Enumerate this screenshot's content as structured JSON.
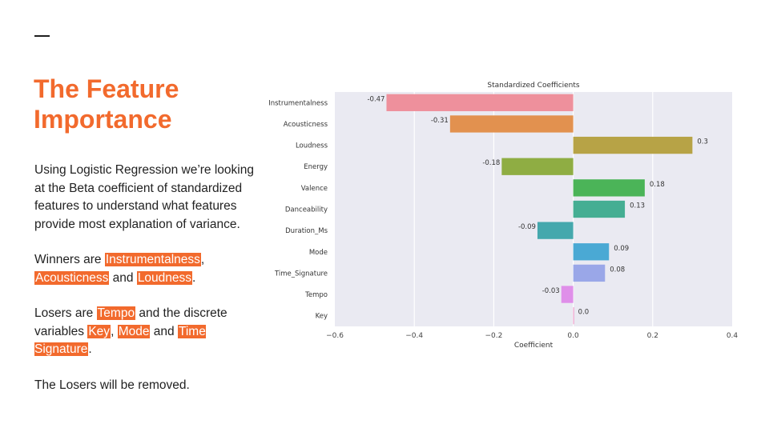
{
  "slide": {
    "title": "The Feature Importance",
    "intro": "Using Logistic Regression we’re looking at the Beta coefficient of standardized features to understand what features provide most explanation of variance.",
    "winners_prefix": "Winners are ",
    "winners": [
      "Instrumentalness",
      "Acousticness",
      "Loudness"
    ],
    "winners_sep_1": ", ",
    "winners_sep_2": " and ",
    "winners_suffix": ".",
    "losers_prefix": "Losers are ",
    "losers_tempo": "Tempo",
    "losers_mid": " and the discrete variables ",
    "losers_key": "Key",
    "losers_sep_1": ", ",
    "losers_mode": "Mode",
    "losers_sep_2": " and ",
    "losers_time": "Time Signature",
    "losers_suffix": ".",
    "closing": "The Losers will be removed."
  },
  "colors": {
    "accent": "#f26a2d",
    "plot_bg": "#eaeaf2"
  },
  "chart_data": {
    "type": "bar",
    "orientation": "horizontal",
    "title": "Standardized Coefficients",
    "xlabel": "Coefficient",
    "ylabel": "",
    "xlim": [
      -0.6,
      0.4
    ],
    "xticks": [
      -0.6,
      -0.4,
      -0.2,
      0.0,
      0.2,
      0.4
    ],
    "xtick_labels": [
      "−0.6",
      "−0.4",
      "−0.2",
      "0.0",
      "0.2",
      "0.4"
    ],
    "grid": true,
    "categories": [
      "Instrumentalness",
      "Acousticness",
      "Loudness",
      "Energy",
      "Valence",
      "Danceability",
      "Duration_Ms",
      "Mode",
      "Time_Signature",
      "Tempo",
      "Key"
    ],
    "values": [
      -0.47,
      -0.31,
      0.3,
      -0.18,
      0.18,
      0.13,
      -0.09,
      0.09,
      0.08,
      -0.03,
      0.0
    ],
    "data_labels": [
      "-0.47",
      "-0.31",
      "0.3",
      "-0.18",
      "0.18",
      "0.13",
      "-0.09",
      "0.09",
      "0.08",
      "-0.03",
      "0.0"
    ],
    "bar_colors": [
      "#ee909c",
      "#e2914f",
      "#b7a346",
      "#8fad43",
      "#4bb458",
      "#45ae93",
      "#45a8ad",
      "#4aa9d4",
      "#9aa7e8",
      "#df8fe9",
      "#ef91c4"
    ]
  }
}
